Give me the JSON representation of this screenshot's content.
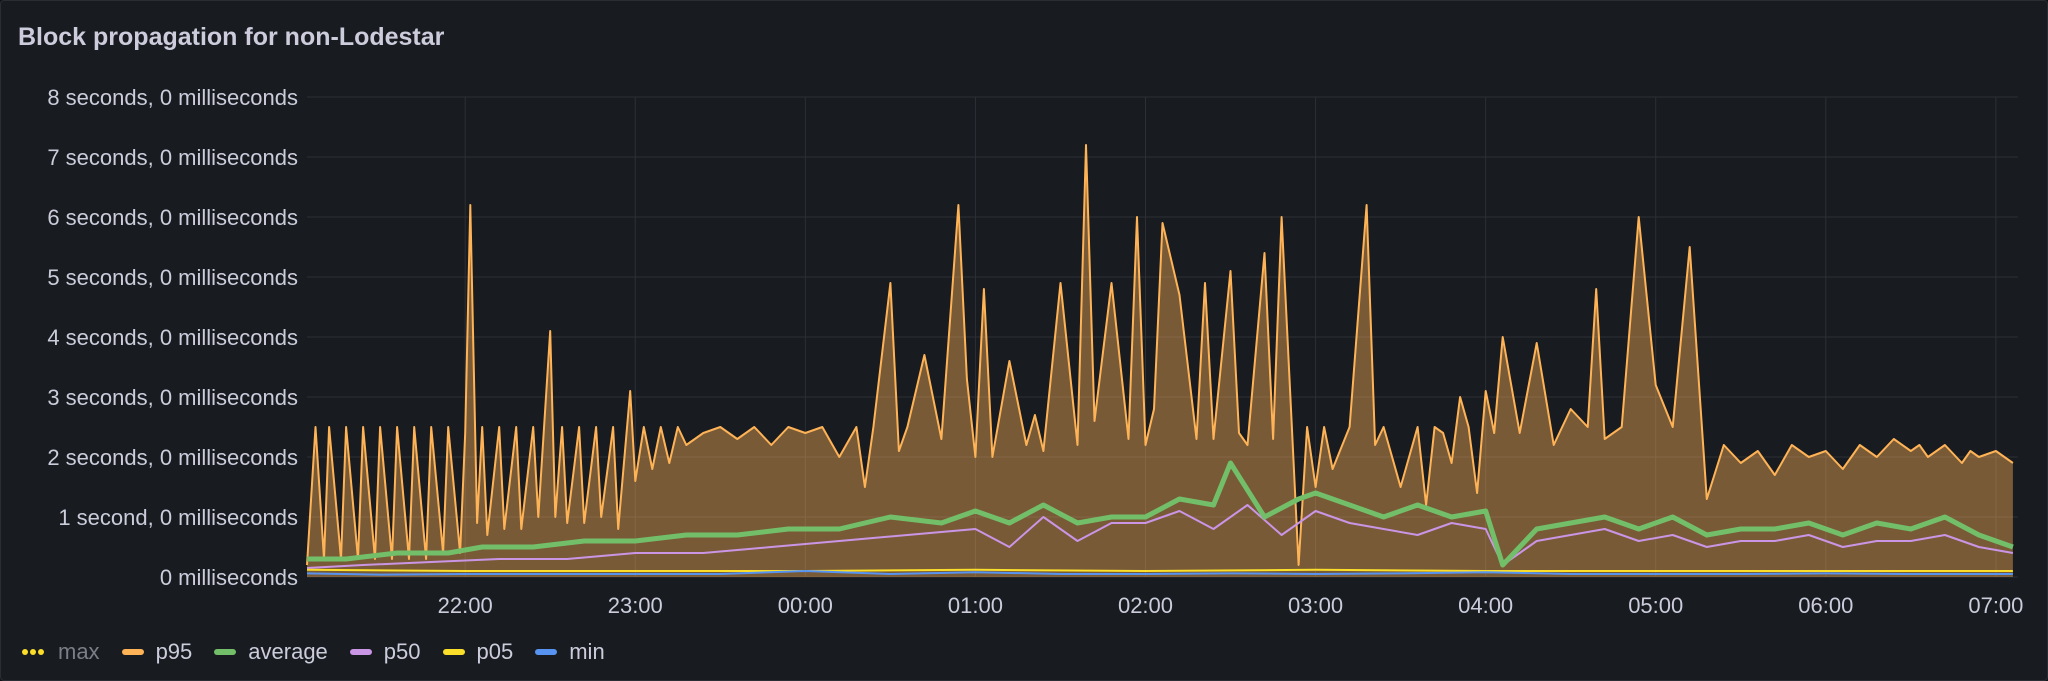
{
  "panel": {
    "title": "Block propagation for non-Lodestar"
  },
  "chart_data": {
    "type": "line",
    "title": "Block propagation for non-Lodestar",
    "y_unit": "seconds",
    "ylim": [
      0,
      8
    ],
    "y_ticks": [
      {
        "value": 0,
        "label": "0 milliseconds"
      },
      {
        "value": 1,
        "label": "1 second, 0 milliseconds"
      },
      {
        "value": 2,
        "label": "2 seconds, 0 milliseconds"
      },
      {
        "value": 3,
        "label": "3 seconds, 0 milliseconds"
      },
      {
        "value": 4,
        "label": "4 seconds, 0 milliseconds"
      },
      {
        "value": 5,
        "label": "5 seconds, 0 milliseconds"
      },
      {
        "value": 6,
        "label": "6 seconds, 0 milliseconds"
      },
      {
        "value": 7,
        "label": "7 seconds, 0 milliseconds"
      },
      {
        "value": 8,
        "label": "8 seconds, 0 milliseconds"
      }
    ],
    "x_unit": "time of day (hours)",
    "xlim": [
      21.07,
      7.13
    ],
    "x_ticks": [
      {
        "value": 22,
        "label": "22:00"
      },
      {
        "value": 23,
        "label": "23:00"
      },
      {
        "value": 24,
        "label": "00:00"
      },
      {
        "value": 25,
        "label": "01:00"
      },
      {
        "value": 26,
        "label": "02:00"
      },
      {
        "value": 27,
        "label": "03:00"
      },
      {
        "value": 28,
        "label": "04:00"
      },
      {
        "value": 29,
        "label": "05:00"
      },
      {
        "value": 30,
        "label": "06:00"
      },
      {
        "value": 31,
        "label": "07:00"
      }
    ],
    "grid": true,
    "legend_position": "bottom-left",
    "series": [
      {
        "name": "max",
        "color": "#fade2a",
        "style": "dotted",
        "hidden": true,
        "x": [],
        "y": []
      },
      {
        "name": "p95",
        "color": "#ffb357",
        "fill": true,
        "x": [
          21.07,
          21.12,
          21.17,
          21.2,
          21.27,
          21.3,
          21.37,
          21.4,
          21.47,
          21.5,
          21.57,
          21.6,
          21.67,
          21.7,
          21.77,
          21.8,
          21.87,
          21.9,
          21.97,
          22.0,
          22.03,
          22.07,
          22.1,
          22.13,
          22.2,
          22.23,
          22.3,
          22.33,
          22.4,
          22.43,
          22.5,
          22.53,
          22.57,
          22.6,
          22.67,
          22.7,
          22.77,
          22.8,
          22.87,
          22.9,
          22.97,
          23.0,
          23.05,
          23.1,
          23.15,
          23.2,
          23.25,
          23.3,
          23.4,
          23.5,
          23.6,
          23.7,
          23.8,
          23.9,
          24.0,
          24.1,
          24.2,
          24.3,
          24.35,
          24.4,
          24.5,
          24.55,
          24.6,
          24.7,
          24.8,
          24.9,
          24.95,
          25.0,
          25.05,
          25.1,
          25.2,
          25.3,
          25.35,
          25.4,
          25.5,
          25.6,
          25.65,
          25.7,
          25.8,
          25.9,
          25.95,
          26.0,
          26.05,
          26.1,
          26.2,
          26.3,
          26.35,
          26.4,
          26.5,
          26.55,
          26.6,
          26.7,
          26.75,
          26.8,
          26.9,
          26.95,
          27.0,
          27.05,
          27.1,
          27.2,
          27.3,
          27.35,
          27.4,
          27.5,
          27.6,
          27.65,
          27.7,
          27.75,
          27.8,
          27.85,
          27.9,
          27.95,
          28.0,
          28.05,
          28.1,
          28.2,
          28.3,
          28.4,
          28.5,
          28.6,
          28.65,
          28.7,
          28.8,
          28.9,
          29.0,
          29.1,
          29.2,
          29.3,
          29.4,
          29.5,
          29.6,
          29.7,
          29.8,
          29.9,
          30.0,
          30.1,
          30.2,
          30.3,
          30.4,
          30.5,
          30.55,
          30.6,
          30.7,
          30.8,
          30.85,
          30.9,
          31.0,
          31.1
        ],
        "y": [
          0.2,
          2.5,
          0.3,
          2.5,
          0.3,
          2.5,
          0.3,
          2.5,
          0.3,
          2.5,
          0.3,
          2.5,
          0.3,
          2.5,
          0.3,
          2.5,
          0.4,
          2.5,
          0.4,
          2.4,
          6.2,
          0.9,
          2.5,
          0.7,
          2.5,
          0.8,
          2.5,
          0.8,
          2.5,
          1.0,
          4.1,
          1.0,
          2.5,
          0.9,
          2.5,
          0.9,
          2.5,
          1.0,
          2.5,
          0.8,
          3.1,
          1.6,
          2.5,
          1.8,
          2.5,
          1.9,
          2.5,
          2.2,
          2.4,
          2.5,
          2.3,
          2.5,
          2.2,
          2.5,
          2.4,
          2.5,
          2.0,
          2.5,
          1.5,
          2.5,
          4.9,
          2.1,
          2.5,
          3.7,
          2.3,
          6.2,
          3.3,
          2.0,
          4.8,
          2.0,
          3.6,
          2.2,
          2.7,
          2.1,
          4.9,
          2.2,
          7.2,
          2.6,
          4.9,
          2.3,
          6.0,
          2.2,
          2.8,
          5.9,
          4.7,
          2.3,
          4.9,
          2.3,
          5.1,
          2.4,
          2.2,
          5.4,
          2.3,
          6.0,
          0.2,
          2.5,
          1.5,
          2.5,
          1.8,
          2.5,
          6.2,
          2.2,
          2.5,
          1.5,
          2.5,
          1.2,
          2.5,
          2.4,
          1.9,
          3.0,
          2.5,
          1.4,
          3.1,
          2.4,
          4.0,
          2.4,
          3.9,
          2.2,
          2.8,
          2.5,
          4.8,
          2.3,
          2.5,
          6.0,
          3.2,
          2.5,
          5.5,
          1.3,
          2.2,
          1.9,
          2.1,
          1.7,
          2.2,
          2.0,
          2.1,
          1.8,
          2.2,
          2.0,
          2.3,
          2.1,
          2.2,
          2.0,
          2.2,
          1.9,
          2.1,
          2.0,
          2.1,
          1.9
        ]
      },
      {
        "name": "average",
        "color": "#73bf69",
        "thick": true,
        "x": [
          21.07,
          21.3,
          21.6,
          21.9,
          22.1,
          22.4,
          22.7,
          23.0,
          23.3,
          23.6,
          23.9,
          24.2,
          24.5,
          24.8,
          25.0,
          25.2,
          25.4,
          25.6,
          25.8,
          26.0,
          26.2,
          26.4,
          26.5,
          26.7,
          26.9,
          27.0,
          27.2,
          27.4,
          27.6,
          27.8,
          28.0,
          28.1,
          28.3,
          28.5,
          28.7,
          28.9,
          29.1,
          29.3,
          29.5,
          29.7,
          29.9,
          30.1,
          30.3,
          30.5,
          30.7,
          30.9,
          31.1
        ],
        "y": [
          0.3,
          0.3,
          0.4,
          0.4,
          0.5,
          0.5,
          0.6,
          0.6,
          0.7,
          0.7,
          0.8,
          0.8,
          1.0,
          0.9,
          1.1,
          0.9,
          1.2,
          0.9,
          1.0,
          1.0,
          1.3,
          1.2,
          1.9,
          1.0,
          1.3,
          1.4,
          1.2,
          1.0,
          1.2,
          1.0,
          1.1,
          0.2,
          0.8,
          0.9,
          1.0,
          0.8,
          1.0,
          0.7,
          0.8,
          0.8,
          0.9,
          0.7,
          0.9,
          0.8,
          1.0,
          0.7,
          0.5
        ]
      },
      {
        "name": "p50",
        "color": "#ca95e5",
        "x": [
          21.07,
          21.4,
          21.8,
          22.2,
          22.6,
          23.0,
          23.4,
          23.8,
          24.2,
          24.6,
          25.0,
          25.2,
          25.4,
          25.6,
          25.8,
          26.0,
          26.2,
          26.4,
          26.6,
          26.8,
          27.0,
          27.2,
          27.4,
          27.6,
          27.8,
          28.0,
          28.1,
          28.3,
          28.5,
          28.7,
          28.9,
          29.1,
          29.3,
          29.5,
          29.7,
          29.9,
          30.1,
          30.3,
          30.5,
          30.7,
          30.9,
          31.1
        ],
        "y": [
          0.15,
          0.2,
          0.25,
          0.3,
          0.3,
          0.4,
          0.4,
          0.5,
          0.6,
          0.7,
          0.8,
          0.5,
          1.0,
          0.6,
          0.9,
          0.9,
          1.1,
          0.8,
          1.2,
          0.7,
          1.1,
          0.9,
          0.8,
          0.7,
          0.9,
          0.8,
          0.2,
          0.6,
          0.7,
          0.8,
          0.6,
          0.7,
          0.5,
          0.6,
          0.6,
          0.7,
          0.5,
          0.6,
          0.6,
          0.7,
          0.5,
          0.4
        ]
      },
      {
        "name": "p05",
        "color": "#fade2a",
        "x": [
          21.07,
          22.0,
          23.0,
          24.0,
          25.0,
          26.0,
          27.0,
          28.0,
          29.0,
          30.0,
          31.1
        ],
        "y": [
          0.12,
          0.1,
          0.1,
          0.1,
          0.12,
          0.1,
          0.12,
          0.1,
          0.1,
          0.1,
          0.1
        ]
      },
      {
        "name": "min",
        "color": "#5794f2",
        "x": [
          21.07,
          21.5,
          22.0,
          22.5,
          23.0,
          23.5,
          24.0,
          24.5,
          25.0,
          25.5,
          26.0,
          26.5,
          27.0,
          27.5,
          28.0,
          28.5,
          29.0,
          29.5,
          30.0,
          30.5,
          31.1
        ],
        "y": [
          0.06,
          0.04,
          0.05,
          0.05,
          0.05,
          0.05,
          0.1,
          0.05,
          0.08,
          0.05,
          0.05,
          0.06,
          0.05,
          0.06,
          0.08,
          0.05,
          0.05,
          0.05,
          0.06,
          0.05,
          0.05
        ]
      }
    ]
  }
}
